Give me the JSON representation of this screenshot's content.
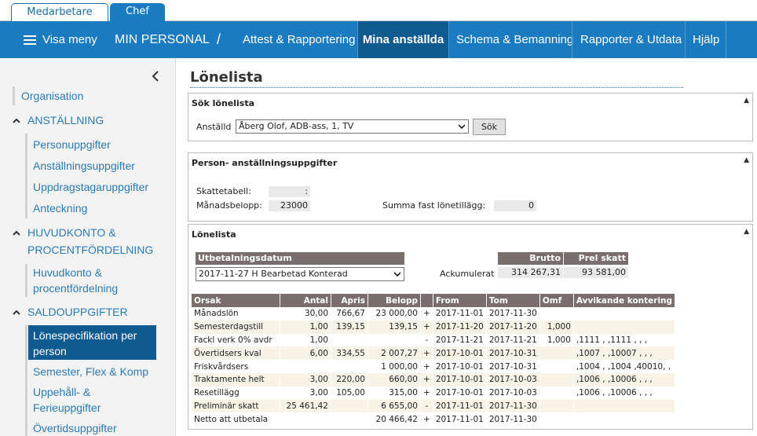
{
  "role_tabs": [
    "Medarbetare",
    "Chef"
  ],
  "nav": {
    "menu_label": "Visa meny",
    "section": "MIN PERSONAL",
    "separator": "/",
    "items": [
      "Attest & Rapportering",
      "Mina anställda",
      "Schema & Bemanning",
      "Rapporter & Utdata",
      "Hjälp"
    ]
  },
  "sidebar": {
    "org": "Organisation",
    "sec1": {
      "title": "ANSTÄLLNING",
      "items": [
        "Personuppgifter",
        "Anställningsuppgifter",
        "Uppdragstagaruppgifter",
        "Anteckning"
      ]
    },
    "sec2": {
      "title_l1": "HUVUDKONTO &",
      "title_l2": "PROCENTFÖRDELNING",
      "item_l1": "Huvudkonto &",
      "item_l2": "procentfördelning"
    },
    "sec3": {
      "title": "SALDOUPPGIFTER",
      "active_l1": "Lönespecifikation per",
      "active_l2": "person",
      "item1": "Semester, Flex & Komp",
      "item2_l1": "Uppehåll- &",
      "item2_l2": "Ferieuppgifter",
      "item3": "Övertidsuppgifter"
    }
  },
  "page": {
    "title": "Lönelista",
    "search": {
      "header": "Sök lönelista",
      "label": "Anställd",
      "value": "Åberg Olof, ADB-ass, 1, TV",
      "button": "Sök"
    },
    "person": {
      "header": "Person- anställningsuppgifter",
      "skatt_label": "Skattetabell:",
      "skatt_value": ":",
      "mb_label": "Månadsbelopp:",
      "mb_value": "23000",
      "sft_label": "Summa fast lönetillägg:",
      "sft_value": "0"
    },
    "lonelista": {
      "header": "Lönelista",
      "utb_label": "Utbetalningsdatum",
      "utb_value": "2017-11-27 H Bearbetad Konterad",
      "brutto_label": "Brutto",
      "prel_label": "Prel skatt",
      "ack_label": "Ackumulerat",
      "brutto_value": "314 267,31",
      "prel_value": "93 581,00",
      "columns": [
        "Orsak",
        "Antal",
        "Apris",
        "Belopp",
        "",
        "From",
        "Tom",
        "Omf",
        "Avvikande kontering"
      ],
      "rows": [
        [
          "Månadslön",
          "30,00",
          "766,67",
          "23 000,00",
          "+",
          "2017-11-01",
          "2017-11-30",
          "",
          ""
        ],
        [
          "Semesterdagstill",
          "1,00",
          "139,15",
          "139,15",
          "+",
          "2017-11-20",
          "2017-11-20",
          "1,000",
          ""
        ],
        [
          "Fackl verk 0% avdr",
          "1,00",
          "",
          "",
          "-",
          "2017-11-21",
          "2017-11-21",
          "1,000",
          ",1111 , ,1111 , , ,"
        ],
        [
          "Övertidsers kval",
          "6,00",
          "334,55",
          "2 007,27",
          "+",
          "2017-10-01",
          "2017-10-31",
          "",
          ",1007 , ,10007 , , ,"
        ],
        [
          "Friskvårdsers",
          "",
          "",
          "1 000,00",
          "+",
          "2017-10-01",
          "2017-10-31",
          "",
          ",1004 , ,1004 ,40010, ,"
        ],
        [
          "Traktamente helt",
          "3,00",
          "220,00",
          "660,00",
          "+",
          "2017-10-01",
          "2017-10-03",
          "",
          ",1006 , ,10006 , , ,"
        ],
        [
          "Resetillägg",
          "3,00",
          "105,00",
          "315,00",
          "+",
          "2017-10-01",
          "2017-10-03",
          "",
          ",1006 , ,10006 , , ,"
        ],
        [
          "Preliminär skatt",
          "25 461,42",
          "",
          "6 655,00",
          "-",
          "2017-11-01",
          "2017-11-30",
          "",
          ""
        ],
        [
          "Netto att utbetala",
          "",
          "",
          "20 466,42",
          "+",
          "2017-11-01",
          "2017-11-30",
          "",
          ""
        ]
      ]
    }
  }
}
